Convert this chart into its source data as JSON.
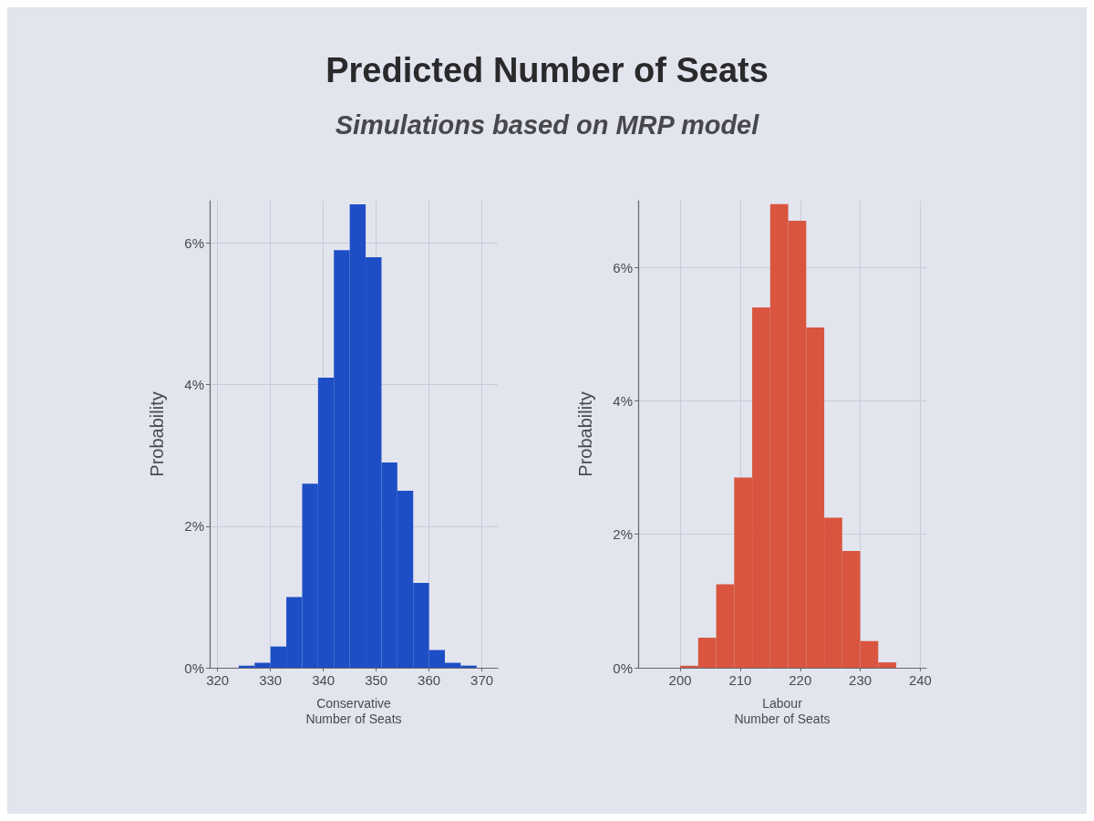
{
  "chart_data": [
    {
      "type": "histogram",
      "title": "Predicted Number of Seats",
      "subtitle": "Simulations based on MRP model",
      "xlabel": "Conservative\nNumber of Seats",
      "ylabel": "Probability",
      "bins": [
        324,
        327,
        330,
        333,
        336,
        339,
        342,
        345,
        348,
        351,
        354,
        357,
        360,
        363,
        366,
        369
      ],
      "values": [
        0.03,
        0.07,
        0.3,
        1.0,
        2.6,
        4.1,
        5.9,
        6.55,
        5.8,
        2.9,
        2.5,
        1.2,
        0.25,
        0.07,
        0.03
      ],
      "color": "#1d4ec6",
      "xlim": [
        318.5,
        373
      ],
      "xticks": [
        320,
        330,
        340,
        350,
        360,
        370
      ],
      "ylim": [
        0,
        6.6
      ],
      "yticks": [
        {
          "value": 0,
          "label": "0%"
        },
        {
          "value": 2,
          "label": "2%"
        },
        {
          "value": 4,
          "label": "4%"
        },
        {
          "value": 6,
          "label": "6%"
        }
      ],
      "grid": true
    },
    {
      "type": "histogram",
      "xlabel": "Labour\nNumber of Seats",
      "ylabel": "Probability",
      "bins": [
        200,
        203,
        206,
        209,
        212,
        215,
        218,
        221,
        224,
        227,
        230,
        233,
        236
      ],
      "values": [
        0.03,
        0.45,
        1.25,
        2.85,
        5.4,
        6.95,
        6.7,
        5.1,
        2.25,
        1.75,
        0.4,
        0.08
      ],
      "color": "#d9553f",
      "xlim": [
        193,
        241
      ],
      "xticks": [
        200,
        210,
        220,
        230,
        240
      ],
      "ylim": [
        0,
        7
      ],
      "yticks": [
        {
          "value": 0,
          "label": "0%"
        },
        {
          "value": 2,
          "label": "2%"
        },
        {
          "value": 4,
          "label": "4%"
        },
        {
          "value": 6,
          "label": "6%"
        }
      ],
      "grid": true
    }
  ]
}
